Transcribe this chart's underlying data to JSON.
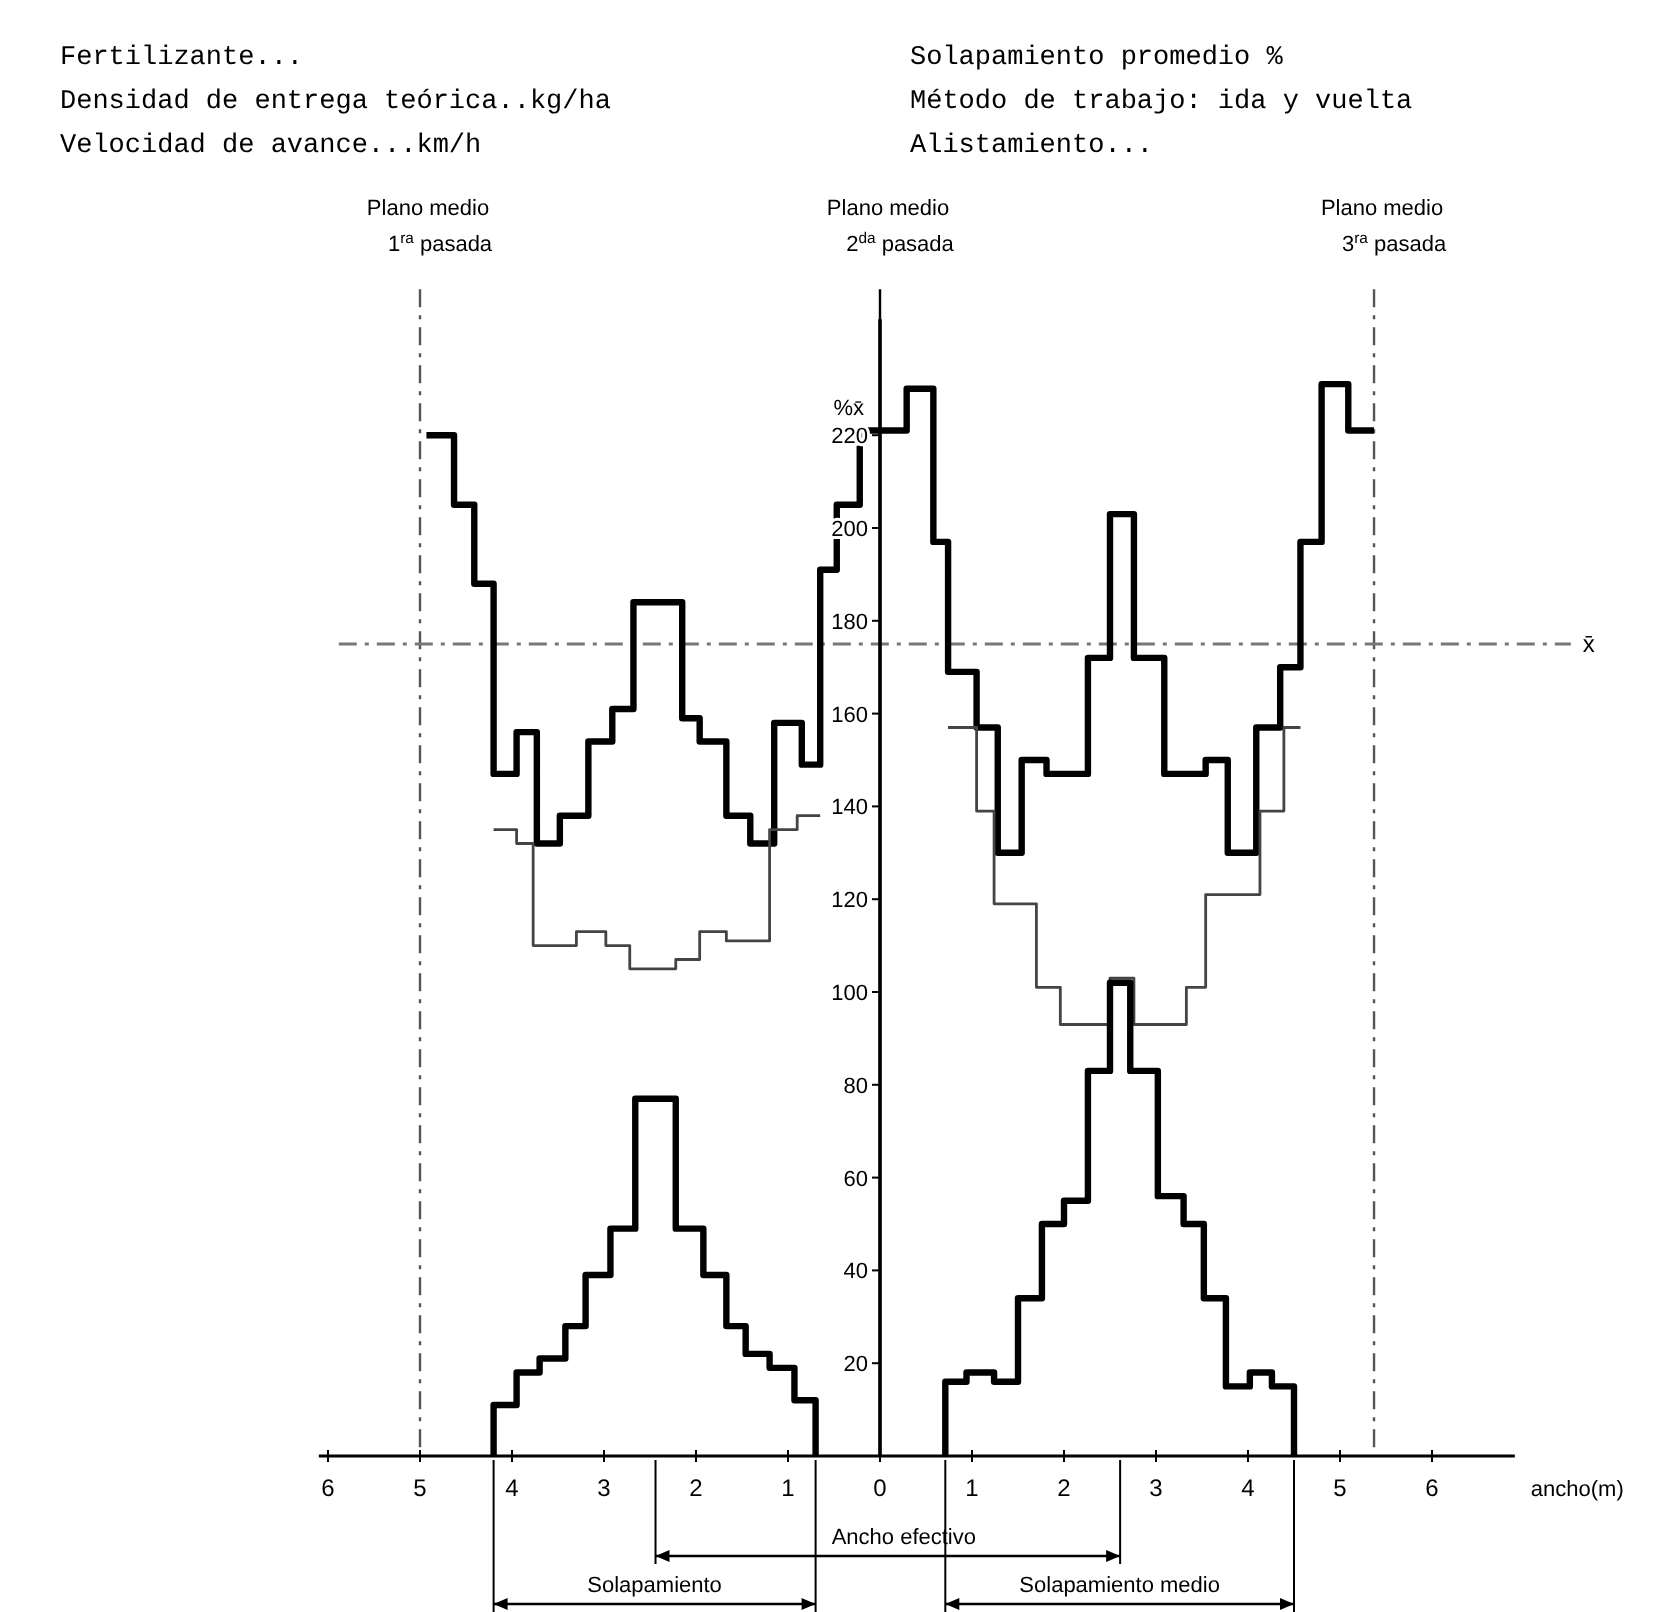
{
  "chart_data": {
    "type": "step",
    "annotations": [
      "Fertilizante...",
      "Densidad de entrega teórica..kg/ha",
      "Velocidad de avance...km/h",
      "Solapamiento promedio %",
      "Método de trabajo: ida y vuelta",
      "Alistamiento...",
      "Ancho efectivo",
      "Solapamiento",
      "Solapamiento medio"
    ],
    "xlabel": "ancho(m)",
    "ylabel": "%x̄",
    "xlim": [
      -6.1,
      6.9
    ],
    "xticks": [
      {
        "value": -6,
        "label": "6"
      },
      {
        "value": -5,
        "label": "5"
      },
      {
        "value": -4,
        "label": "4"
      },
      {
        "value": -3,
        "label": "3"
      },
      {
        "value": -2,
        "label": "2"
      },
      {
        "value": -1,
        "label": "1"
      },
      0,
      1,
      2,
      3,
      4,
      5,
      6
    ],
    "ylim": [
      0,
      245
    ],
    "yticks": [
      20,
      40,
      60,
      80,
      100,
      120,
      140,
      160,
      180,
      200,
      220
    ],
    "series": [
      {
        "color": "#000000",
        "x": [
          -4.93,
          -4.63,
          -4.41,
          -4.2,
          -3.95,
          -3.73,
          -3.48,
          -3.17,
          -2.91,
          -2.68,
          -2.15,
          -1.96,
          -1.67,
          -1.41,
          -1.15,
          -0.85,
          -0.65,
          -0.47,
          -0.22,
          0.29,
          0.58,
          0.74,
          1.05,
          1.28,
          1.54,
          1.81,
          2.26,
          2.5,
          2.76,
          3.09,
          3.54,
          3.78,
          4.09,
          4.35,
          4.57,
          4.8,
          5.09,
          5.37
        ],
        "values": [
          220,
          205,
          188,
          147,
          156,
          132,
          138,
          154,
          161,
          184,
          159,
          154,
          138,
          132,
          158,
          149,
          191,
          205,
          221,
          230,
          197,
          169,
          157,
          130,
          150,
          147,
          172,
          203,
          172,
          147,
          150,
          130,
          157,
          170,
          197,
          231,
          221,
          221
        ]
      },
      {
        "color": "#444444",
        "x": [
          -4.2,
          -3.95,
          -3.77,
          -3.3,
          -2.98,
          -2.72,
          -2.22,
          -1.96,
          -1.67,
          -1.2,
          -0.9,
          -0.65
        ],
        "values": [
          135,
          132,
          110,
          113,
          110,
          105,
          107,
          113,
          111,
          135,
          138,
          138
        ]
      },
      {
        "color": "#444444",
        "x": [
          0.74,
          1.05,
          1.24,
          1.7,
          1.96,
          2.5,
          2.76,
          3.33,
          3.54,
          4.13,
          4.39,
          4.57
        ],
        "values": [
          157,
          139,
          119,
          101,
          93,
          103,
          93,
          101,
          121,
          139,
          157,
          157
        ]
      },
      {
        "color": "#000000",
        "x": [
          -4.2,
          -4.2,
          -3.95,
          -3.7,
          -3.42,
          -3.2,
          -2.93,
          -2.66,
          -2.22,
          -1.92,
          -1.67,
          -1.46,
          -1.2,
          -0.93,
          -0.7
        ],
        "values": [
          0,
          11,
          18,
          21,
          28,
          39,
          49,
          77,
          49,
          39,
          28,
          22,
          19,
          12,
          0
        ]
      },
      {
        "color": "#000000",
        "x": [
          0.71,
          0.71,
          0.94,
          1.24,
          1.5,
          1.76,
          2.0,
          2.26,
          2.5,
          2.72,
          3.02,
          3.3,
          3.52,
          3.76,
          4.02,
          4.26,
          4.5
        ],
        "values": [
          0,
          16,
          18,
          16,
          34,
          50,
          55,
          83,
          102,
          83,
          56,
          50,
          34,
          15,
          18,
          15,
          0
        ]
      }
    ],
    "ref_lines": [
      {
        "axis": "x",
        "value": -5,
        "label": "Plano medio\n1$^{ra}$ pasada",
        "color": "#555555",
        "line_style": "dashed"
      },
      {
        "axis": "x",
        "value": 0,
        "label": "Plano medio\n2$^{da}$ pasada",
        "color": "#000000",
        "line_style": "solid"
      },
      {
        "axis": "x",
        "value": 5.37,
        "label": "Plano medio\n3$^{ra}$ pasada",
        "color": "#555555",
        "line_style": "dashed"
      },
      {
        "axis": "y",
        "value": 175,
        "label": "x̄",
        "color": "#777777",
        "line_style": "dashed"
      }
    ]
  }
}
